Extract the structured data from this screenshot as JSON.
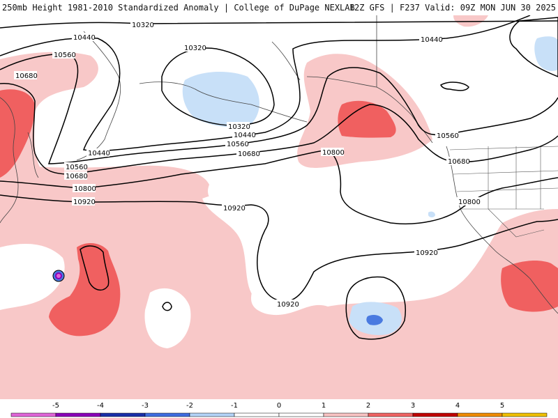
{
  "header": {
    "left_text": "250mb Height 1981-2010 Standardized Anomaly | College of DuPage NEXLAB",
    "right_text": "12Z GFS | F237 Valid: 09Z MON JUN 30 2025"
  },
  "map": {
    "contour_labels": [
      "10320",
      "10440",
      "10560",
      "10680",
      "10800",
      "10920"
    ],
    "label_instances": {
      "l1": "10320",
      "l2": "10440",
      "l3": "10560",
      "l4": "10680",
      "l5": "10320",
      "l6": "10320",
      "l7": "10440",
      "l8": "10560",
      "l9": "10680",
      "l10": "10440",
      "l11": "10560",
      "l12": "10680",
      "l13": "10800",
      "l14": "10920",
      "l15": "10920",
      "l16": "10800",
      "l17": "10560",
      "l18": "10680",
      "l19": "10800",
      "l20": "10920",
      "l21": "10920",
      "l22": "10440"
    }
  },
  "legend": {
    "ticks": [
      "-5",
      "-4",
      "-3",
      "-2",
      "-1",
      "0",
      "1",
      "2",
      "3",
      "4",
      "5"
    ],
    "colors": [
      "#e066d8",
      "#8a00b8",
      "#1a2fa8",
      "#3f6de0",
      "#b3d3f7",
      "#ffffff",
      "#ffffff",
      "#f8c3c3",
      "#f06464",
      "#c00000",
      "#f08c00",
      "#f0c000"
    ]
  },
  "colors": {
    "anom_pos1": "#f8c8c8",
    "anom_pos2": "#f06060",
    "anom_neg1": "#c8e0f8",
    "anom_neg2": "#4a7ae0",
    "contour": "#000000",
    "coast": "#333333"
  }
}
